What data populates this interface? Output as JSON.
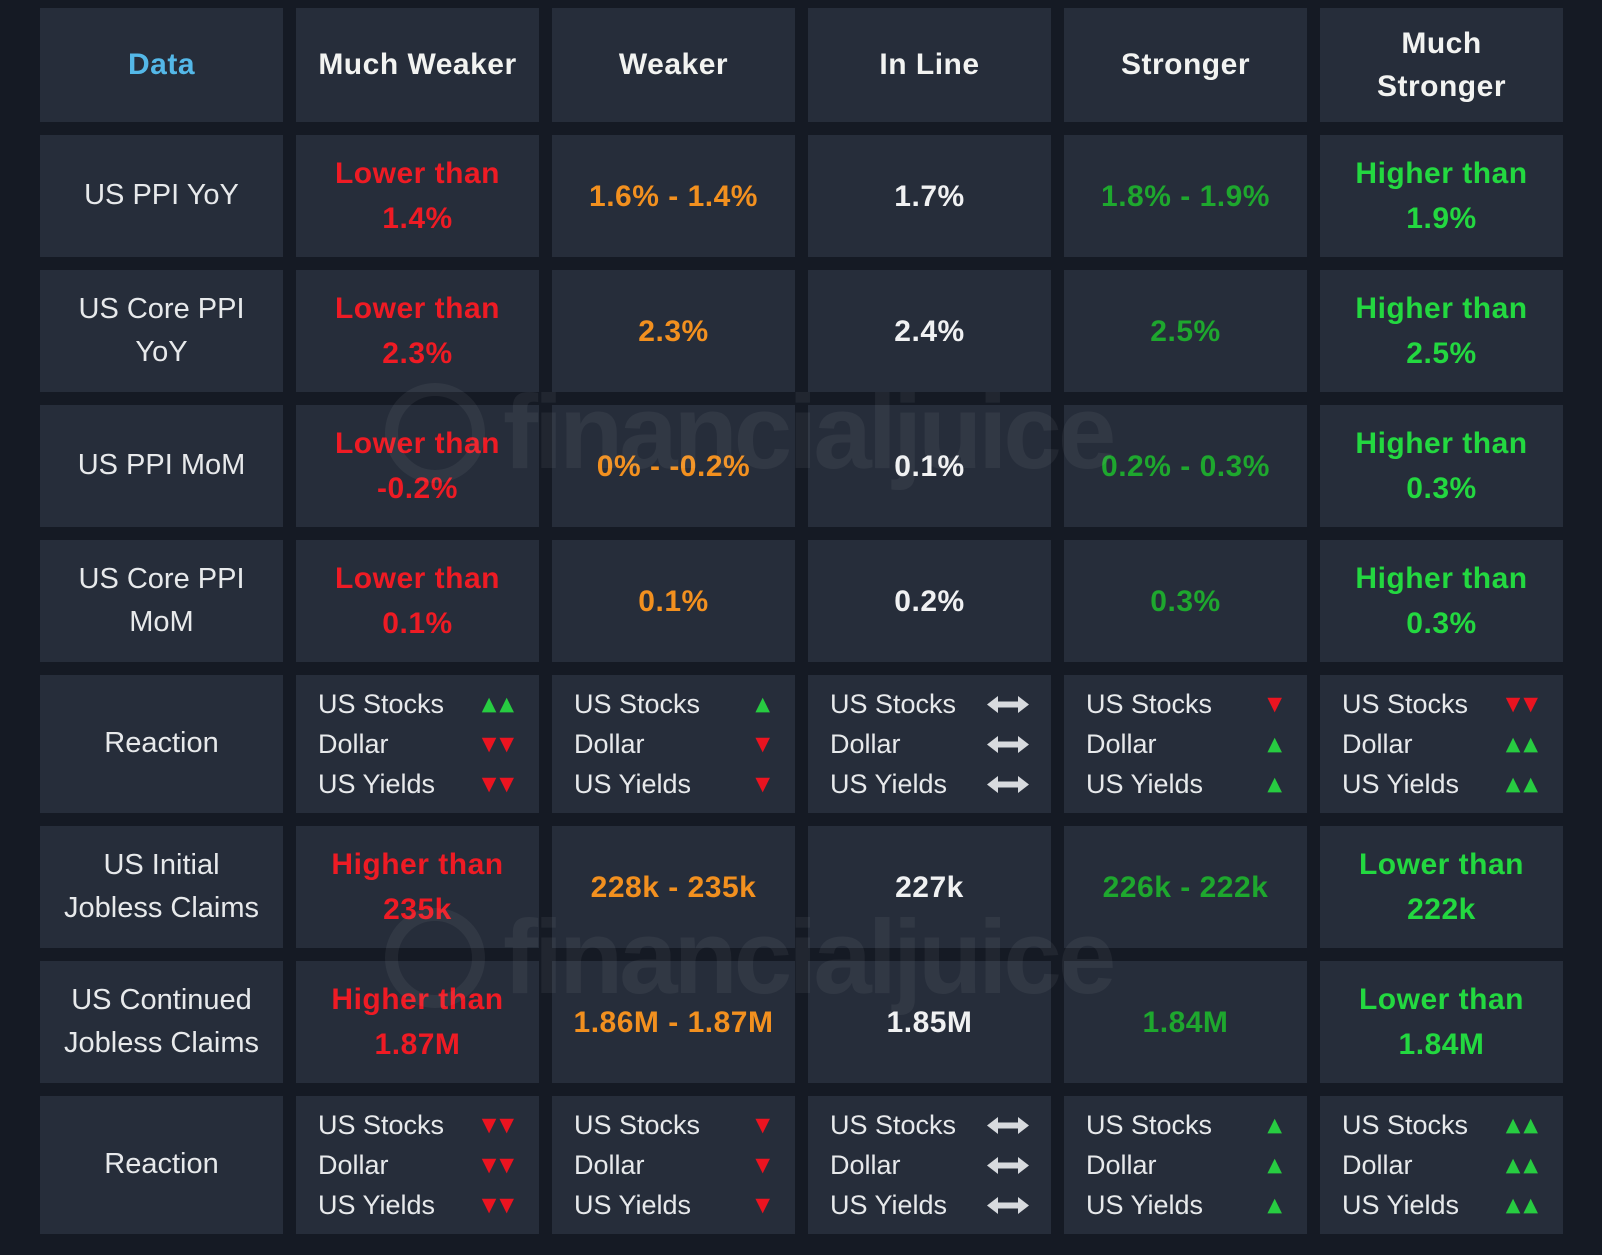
{
  "colors": {
    "page-bg": "#151a24",
    "cell-bg": "#262d3a",
    "blue": "#54b8e8",
    "header-text": "#f2f3f1",
    "label-text": "#e7e9eb",
    "red": "#ee1b24",
    "orange": "#f2901f",
    "white-val": "#f0f1f2",
    "green": "#1ea72e",
    "bgreen": "#23d840",
    "red-arrow": "#ea1420",
    "green-arrow": "#27cc41",
    "flat-arrow": "#d7dade",
    "watermark": "rgba(255,255,255,0.055)"
  },
  "watermark": {
    "text": "financialjuice"
  },
  "chart_data": {
    "type": "table",
    "columns": [
      {
        "label": "Data",
        "accent": "blue"
      },
      {
        "label": "Much Weaker"
      },
      {
        "label": "Weaker"
      },
      {
        "label": "In Line"
      },
      {
        "label": "Stronger"
      },
      {
        "label": "Much\nStronger"
      }
    ],
    "column_tones": [
      "red",
      "orange",
      "white",
      "green",
      "bgreen"
    ],
    "rows": [
      {
        "type": "data",
        "label": "US PPI YoY",
        "values": [
          "Lower than\n1.4%",
          "1.6% - 1.4%",
          "1.7%",
          "1.8% - 1.9%",
          "Higher than\n1.9%"
        ]
      },
      {
        "type": "data",
        "label": "US Core PPI YoY",
        "values": [
          "Lower than\n2.3%",
          "2.3%",
          "2.4%",
          "2.5%",
          "Higher than\n2.5%"
        ]
      },
      {
        "type": "data",
        "label": "US PPI MoM",
        "values": [
          "Lower than\n-0.2%",
          "0% - -0.2%",
          "0.1%",
          "0.2% - 0.3%",
          "Higher than\n0.3%"
        ]
      },
      {
        "type": "data",
        "label": "US Core PPI MoM",
        "values": [
          "Lower than\n0.1%",
          "0.1%",
          "0.2%",
          "0.3%",
          "Higher than\n0.3%"
        ]
      },
      {
        "type": "reaction",
        "label": "Reaction",
        "assets": [
          "US Stocks",
          "Dollar",
          "US Yields"
        ],
        "arrows": [
          [
            "up2",
            "down2",
            "down2"
          ],
          [
            "up",
            "down",
            "down"
          ],
          [
            "flat",
            "flat",
            "flat"
          ],
          [
            "down",
            "up",
            "up"
          ],
          [
            "down2",
            "up2",
            "up2"
          ]
        ]
      },
      {
        "type": "data",
        "label": "US Initial Jobless Claims",
        "values": [
          "Higher than\n235k",
          "228k - 235k",
          "227k",
          "226k - 222k",
          "Lower than\n222k"
        ]
      },
      {
        "type": "data",
        "label": "US Continued Jobless Claims",
        "values": [
          "Higher than\n1.87M",
          "1.86M - 1.87M",
          "1.85M",
          "1.84M",
          "Lower than\n1.84M"
        ]
      },
      {
        "type": "reaction",
        "label": "Reaction",
        "assets": [
          "US Stocks",
          "Dollar",
          "US Yields"
        ],
        "arrows": [
          [
            "down2",
            "down2",
            "down2"
          ],
          [
            "down",
            "down",
            "down"
          ],
          [
            "flat",
            "flat",
            "flat"
          ],
          [
            "up",
            "up",
            "up"
          ],
          [
            "up2",
            "up2",
            "up2"
          ]
        ]
      }
    ]
  }
}
